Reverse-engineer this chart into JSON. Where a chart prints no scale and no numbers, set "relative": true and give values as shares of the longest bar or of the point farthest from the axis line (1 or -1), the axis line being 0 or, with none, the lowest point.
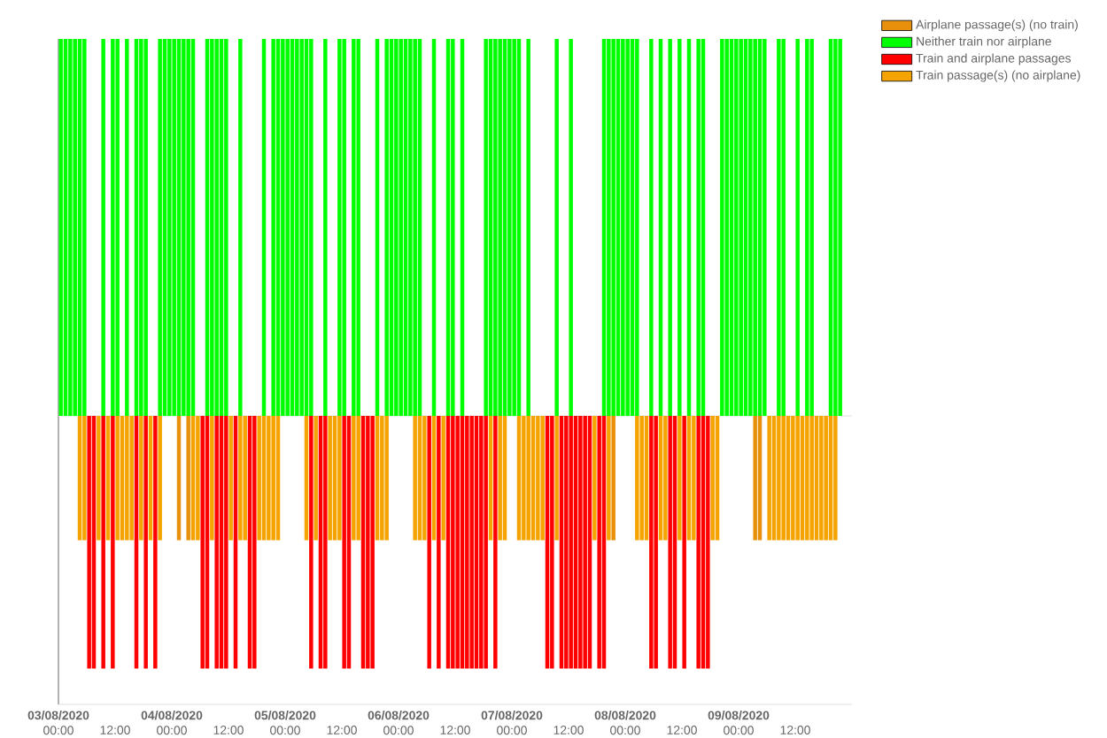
{
  "chart_data": {
    "type": "bar",
    "relative": true,
    "legend": "top right",
    "tick_labels": "x",
    "xlim": [
      "2020-08-03T00:00",
      "2020-08-10T00:00"
    ],
    "xticks": [
      {
        "value": "2020-08-03T00:00",
        "label": "**03/08/2020** 00:00"
      },
      {
        "value": "2020-08-03T12:00",
        "label": "12:00"
      },
      {
        "value": "2020-08-04T00:00",
        "label": "**04/08/2020** 00:00"
      },
      {
        "value": "2020-08-04T12:00",
        "label": "12:00"
      },
      {
        "value": "2020-08-05T00:00",
        "label": "**05/08/2020** 00:00"
      },
      {
        "value": "2020-08-05T12:00",
        "label": "12:00"
      },
      {
        "value": "2020-08-06T00:00",
        "label": "**06/08/2020** 00:00"
      },
      {
        "value": "2020-08-06T12:00",
        "label": "12:00"
      },
      {
        "value": "2020-08-07T00:00",
        "label": "**07/08/2020** 00:00"
      },
      {
        "value": "2020-08-07T12:00",
        "label": "12:00"
      },
      {
        "value": "2020-08-08T00:00",
        "label": "**08/08/2020** 00:00"
      },
      {
        "value": "2020-08-08T12:00",
        "label": "12:00"
      },
      {
        "value": "2020-08-09T00:00",
        "label": "**09/08/2020** 00:00"
      },
      {
        "value": "2020-08-09T12:00",
        "label": "12:00"
      }
    ],
    "series": [
      {
        "name": "Airplane passage(s) (no train)",
        "color": "#e8900c",
        "x": [
          "2020-08-04T01:00",
          "2020-08-04T03:00",
          "2020-08-07T21:00",
          "2020-08-09T03:00",
          "2020-08-09T04:00"
        ],
        "values": [
          -0.33,
          -0.33,
          -0.33,
          -0.33,
          -0.33
        ]
      },
      {
        "name": "Neither train nor airplane",
        "color": "#00ff00",
        "x": [
          "2020-08-03T00:00",
          "2020-08-03T01:00",
          "2020-08-03T02:00",
          "2020-08-03T03:00",
          "2020-08-03T04:00",
          "2020-08-03T05:00",
          "2020-08-03T09:00",
          "2020-08-03T11:00",
          "2020-08-03T12:00",
          "2020-08-03T14:00",
          "2020-08-03T16:00",
          "2020-08-03T17:00",
          "2020-08-03T18:00",
          "2020-08-03T21:00",
          "2020-08-03T22:00",
          "2020-08-03T23:00",
          "2020-08-04T00:00",
          "2020-08-04T01:00",
          "2020-08-04T02:00",
          "2020-08-04T03:00",
          "2020-08-04T04:00",
          "2020-08-04T07:00",
          "2020-08-04T08:00",
          "2020-08-04T09:00",
          "2020-08-04T10:00",
          "2020-08-04T11:00",
          "2020-08-04T14:00",
          "2020-08-04T19:00",
          "2020-08-04T21:00",
          "2020-08-04T22:00",
          "2020-08-04T23:00",
          "2020-08-05T00:00",
          "2020-08-05T01:00",
          "2020-08-05T02:00",
          "2020-08-05T03:00",
          "2020-08-05T04:00",
          "2020-08-05T05:00",
          "2020-08-05T08:00",
          "2020-08-05T11:00",
          "2020-08-05T12:00",
          "2020-08-05T14:00",
          "2020-08-05T15:00",
          "2020-08-05T19:00",
          "2020-08-05T21:00",
          "2020-08-05T22:00",
          "2020-08-05T23:00",
          "2020-08-06T00:00",
          "2020-08-06T01:00",
          "2020-08-06T02:00",
          "2020-08-06T03:00",
          "2020-08-06T04:00",
          "2020-08-06T07:00",
          "2020-08-06T10:00",
          "2020-08-06T11:00",
          "2020-08-06T13:00",
          "2020-08-06T18:00",
          "2020-08-06T19:00",
          "2020-08-06T20:00",
          "2020-08-06T21:00",
          "2020-08-06T22:00",
          "2020-08-06T23:00",
          "2020-08-07T00:00",
          "2020-08-07T01:00",
          "2020-08-07T03:00",
          "2020-08-07T09:00",
          "2020-08-07T12:00",
          "2020-08-07T19:00",
          "2020-08-07T20:00",
          "2020-08-07T21:00",
          "2020-08-07T22:00",
          "2020-08-07T23:00",
          "2020-08-08T00:00",
          "2020-08-08T01:00",
          "2020-08-08T02:00",
          "2020-08-08T05:00",
          "2020-08-08T07:00",
          "2020-08-08T09:00",
          "2020-08-08T11:00",
          "2020-08-08T13:00",
          "2020-08-08T15:00",
          "2020-08-08T16:00",
          "2020-08-08T20:00",
          "2020-08-08T21:00",
          "2020-08-08T22:00",
          "2020-08-08T23:00",
          "2020-08-09T00:00",
          "2020-08-09T01:00",
          "2020-08-09T02:00",
          "2020-08-09T03:00",
          "2020-08-09T04:00",
          "2020-08-09T05:00",
          "2020-08-09T08:00",
          "2020-08-09T09:00",
          "2020-08-09T12:00",
          "2020-08-09T14:00",
          "2020-08-09T15:00",
          "2020-08-09T19:00",
          "2020-08-09T20:00",
          "2020-08-09T21:00"
        ],
        "values": [
          1,
          1,
          1,
          1,
          1,
          1,
          1,
          1,
          1,
          1,
          1,
          1,
          1,
          1,
          1,
          1,
          1,
          1,
          1,
          1,
          1,
          1,
          1,
          1,
          1,
          1,
          1,
          1,
          1,
          1,
          1,
          1,
          1,
          1,
          1,
          1,
          1,
          1,
          1,
          1,
          1,
          1,
          1,
          1,
          1,
          1,
          1,
          1,
          1,
          1,
          1,
          1,
          1,
          1,
          1,
          1,
          1,
          1,
          1,
          1,
          1,
          1,
          1,
          1,
          1,
          1,
          1,
          1,
          1,
          1,
          1,
          1,
          1,
          1,
          1,
          1,
          1,
          1,
          1,
          1,
          1,
          1,
          1,
          1,
          1,
          1,
          1,
          1,
          1,
          1,
          1,
          1,
          1,
          1,
          1,
          1,
          1,
          1,
          1
        ]
      },
      {
        "name": "Train and airplane passages",
        "color": "#ff0000",
        "x": [
          "2020-08-03T06:00",
          "2020-08-03T07:00",
          "2020-08-03T09:00",
          "2020-08-03T11:00",
          "2020-08-03T16:00",
          "2020-08-03T18:00",
          "2020-08-03T20:00",
          "2020-08-04T06:00",
          "2020-08-04T07:00",
          "2020-08-04T09:00",
          "2020-08-04T10:00",
          "2020-08-04T11:00",
          "2020-08-04T13:00",
          "2020-08-04T16:00",
          "2020-08-04T17:00",
          "2020-08-05T05:00",
          "2020-08-05T07:00",
          "2020-08-05T08:00",
          "2020-08-05T12:00",
          "2020-08-05T13:00",
          "2020-08-05T16:00",
          "2020-08-05T17:00",
          "2020-08-05T18:00",
          "2020-08-06T06:00",
          "2020-08-06T08:00",
          "2020-08-06T10:00",
          "2020-08-06T11:00",
          "2020-08-06T12:00",
          "2020-08-06T13:00",
          "2020-08-06T14:00",
          "2020-08-06T15:00",
          "2020-08-06T16:00",
          "2020-08-06T17:00",
          "2020-08-06T18:00",
          "2020-08-06T20:00",
          "2020-08-07T07:00",
          "2020-08-07T08:00",
          "2020-08-07T10:00",
          "2020-08-07T11:00",
          "2020-08-07T12:00",
          "2020-08-07T13:00",
          "2020-08-07T14:00",
          "2020-08-07T15:00",
          "2020-08-07T16:00",
          "2020-08-07T18:00",
          "2020-08-07T19:00",
          "2020-08-08T05:00",
          "2020-08-08T06:00",
          "2020-08-08T09:00",
          "2020-08-08T10:00",
          "2020-08-08T12:00",
          "2020-08-08T15:00",
          "2020-08-08T16:00",
          "2020-08-08T17:00"
        ],
        "values": [
          -0.67,
          -0.67,
          -0.67,
          -0.67,
          -0.67,
          -0.67,
          -0.67,
          -0.67,
          -0.67,
          -0.67,
          -0.67,
          -0.67,
          -0.67,
          -0.67,
          -0.67,
          -0.67,
          -0.67,
          -0.67,
          -0.67,
          -0.67,
          -0.67,
          -0.67,
          -0.67,
          -0.67,
          -0.67,
          -0.67,
          -0.67,
          -0.67,
          -0.67,
          -0.67,
          -0.67,
          -0.67,
          -0.67,
          -0.67,
          -0.67,
          -0.67,
          -0.67,
          -0.67,
          -0.67,
          -0.67,
          -0.67,
          -0.67,
          -0.67,
          -0.67,
          -0.67,
          -0.67,
          -0.67,
          -0.67,
          -0.67,
          -0.67,
          -0.67,
          -0.67,
          -0.67,
          -0.67
        ]
      },
      {
        "name": "Train passage(s) (no airplane)",
        "color": "#f5a300",
        "x": [
          "2020-08-03T04:00",
          "2020-08-03T05:00",
          "2020-08-03T08:00",
          "2020-08-03T10:00",
          "2020-08-03T12:00",
          "2020-08-03T13:00",
          "2020-08-03T14:00",
          "2020-08-03T15:00",
          "2020-08-03T17:00",
          "2020-08-03T19:00",
          "2020-08-03T21:00",
          "2020-08-04T04:00",
          "2020-08-04T05:00",
          "2020-08-04T08:00",
          "2020-08-04T12:00",
          "2020-08-04T14:00",
          "2020-08-04T15:00",
          "2020-08-04T18:00",
          "2020-08-04T19:00",
          "2020-08-04T20:00",
          "2020-08-04T21:00",
          "2020-08-04T22:00",
          "2020-08-05T04:00",
          "2020-08-05T06:00",
          "2020-08-05T09:00",
          "2020-08-05T10:00",
          "2020-08-05T11:00",
          "2020-08-05T14:00",
          "2020-08-05T15:00",
          "2020-08-05T19:00",
          "2020-08-05T20:00",
          "2020-08-05T21:00",
          "2020-08-06T03:00",
          "2020-08-06T04:00",
          "2020-08-06T05:00",
          "2020-08-06T07:00",
          "2020-08-06T09:00",
          "2020-08-06T19:00",
          "2020-08-06T21:00",
          "2020-08-06T22:00",
          "2020-08-07T01:00",
          "2020-08-07T02:00",
          "2020-08-07T03:00",
          "2020-08-07T04:00",
          "2020-08-07T05:00",
          "2020-08-07T06:00",
          "2020-08-07T09:00",
          "2020-08-07T17:00",
          "2020-08-07T20:00",
          "2020-08-08T02:00",
          "2020-08-08T03:00",
          "2020-08-08T04:00",
          "2020-08-08T07:00",
          "2020-08-08T08:00",
          "2020-08-08T11:00",
          "2020-08-08T13:00",
          "2020-08-08T14:00",
          "2020-08-08T18:00",
          "2020-08-08T19:00",
          "2020-08-09T06:00",
          "2020-08-09T07:00",
          "2020-08-09T08:00",
          "2020-08-09T09:00",
          "2020-08-09T10:00",
          "2020-08-09T11:00",
          "2020-08-09T12:00",
          "2020-08-09T13:00",
          "2020-08-09T14:00",
          "2020-08-09T15:00",
          "2020-08-09T16:00",
          "2020-08-09T17:00",
          "2020-08-09T18:00",
          "2020-08-09T19:00",
          "2020-08-09T20:00"
        ],
        "values": [
          -0.33,
          -0.33,
          -0.33,
          -0.33,
          -0.33,
          -0.33,
          -0.33,
          -0.33,
          -0.33,
          -0.33,
          -0.33,
          -0.33,
          -0.33,
          -0.33,
          -0.33,
          -0.33,
          -0.33,
          -0.33,
          -0.33,
          -0.33,
          -0.33,
          -0.33,
          -0.33,
          -0.33,
          -0.33,
          -0.33,
          -0.33,
          -0.33,
          -0.33,
          -0.33,
          -0.33,
          -0.33,
          -0.33,
          -0.33,
          -0.33,
          -0.33,
          -0.33,
          -0.33,
          -0.33,
          -0.33,
          -0.33,
          -0.33,
          -0.33,
          -0.33,
          -0.33,
          -0.33,
          -0.33,
          -0.33,
          -0.33,
          -0.33,
          -0.33,
          -0.33,
          -0.33,
          -0.33,
          -0.33,
          -0.33,
          -0.33,
          -0.33,
          -0.33,
          -0.33,
          -0.33,
          -0.33,
          -0.33,
          -0.33,
          -0.33,
          -0.33,
          -0.33,
          -0.33,
          -0.33,
          -0.33,
          -0.33,
          -0.33,
          -0.33,
          -0.33
        ]
      }
    ]
  }
}
